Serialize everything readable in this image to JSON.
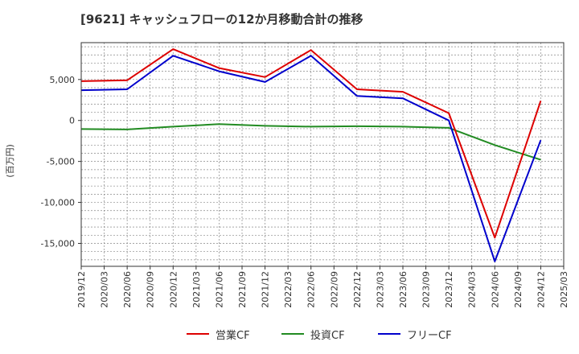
{
  "chart_data": {
    "type": "line",
    "title": "[9621]  キャッシュフローの12か月移動合計の推移",
    "ylabel": "(百万円)",
    "xlabel": "",
    "ylim": [
      -17800,
      9500
    ],
    "yticks": [
      5000,
      0,
      -5000,
      -10000,
      -15000
    ],
    "ytick_labels": [
      "5,000",
      "0",
      "-5,000",
      "-10,000",
      "-15,000"
    ],
    "x_tick_labels": [
      "2019/12",
      "2020/03",
      "2020/06",
      "2020/09",
      "2020/12",
      "2021/03",
      "2021/06",
      "2021/09",
      "2021/12",
      "2022/03",
      "2022/06",
      "2022/09",
      "2022/12",
      "2023/03",
      "2023/06",
      "2023/09",
      "2023/12",
      "2024/03",
      "2024/06",
      "2024/09",
      "2024/12",
      "2025/03"
    ],
    "grid": true,
    "legend_position": "bottom",
    "series": [
      {
        "name": "営業CF",
        "color": "#dd0000",
        "x_index": [
          0,
          2,
          4,
          6,
          8,
          10,
          12,
          14,
          16,
          18,
          20
        ],
        "values": [
          4800,
          4900,
          8700,
          6400,
          5300,
          8600,
          3800,
          3500,
          900,
          -14300,
          2400
        ]
      },
      {
        "name": "投資CF",
        "color": "#228b22",
        "x_index": [
          0,
          2,
          4,
          6,
          8,
          10,
          12,
          14,
          16,
          18,
          20
        ],
        "values": [
          -1050,
          -1100,
          -750,
          -450,
          -650,
          -750,
          -700,
          -750,
          -900,
          -3000,
          -4800
        ]
      },
      {
        "name": "フリーCF",
        "color": "#0000cc",
        "x_index": [
          0,
          2,
          4,
          6,
          8,
          10,
          12,
          14,
          16,
          18,
          20
        ],
        "values": [
          3700,
          3800,
          7900,
          6000,
          4700,
          7900,
          3000,
          2700,
          0,
          -17200,
          -2400
        ]
      }
    ]
  }
}
